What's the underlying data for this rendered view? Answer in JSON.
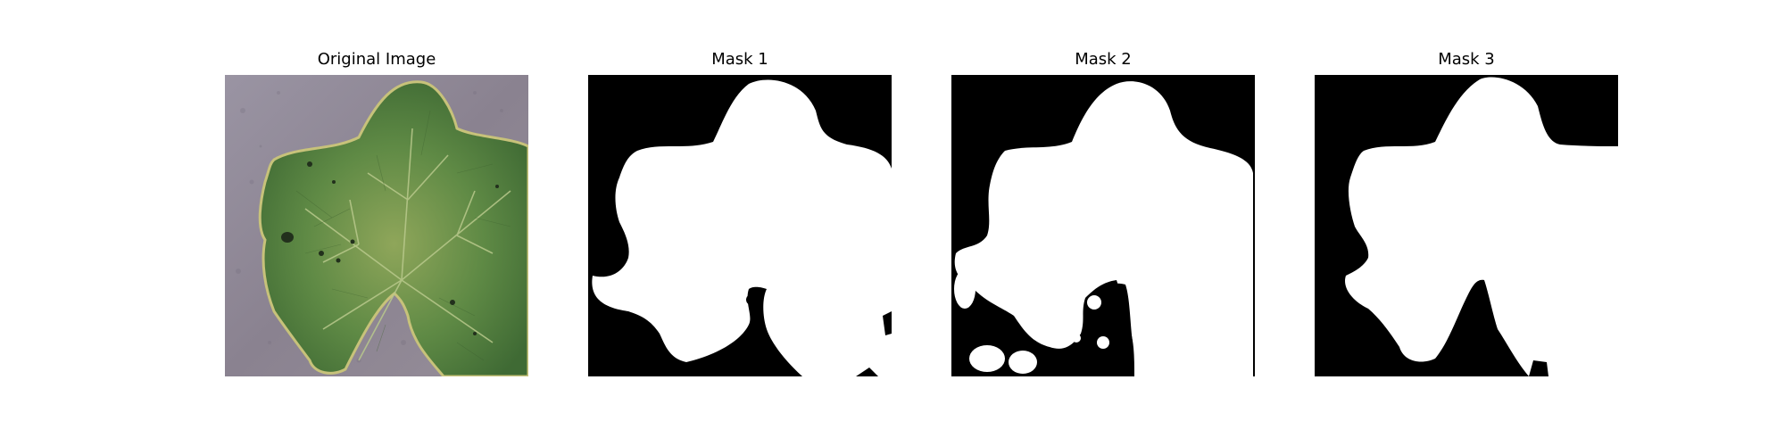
{
  "figure": {
    "panels": [
      {
        "title": "Original Image",
        "kind": "photo",
        "content": "leaf"
      },
      {
        "title": "Mask 1",
        "kind": "mask"
      },
      {
        "title": "Mask 2",
        "kind": "mask"
      },
      {
        "title": "Mask 3",
        "kind": "mask"
      }
    ]
  },
  "colors": {
    "background": "#ffffff",
    "mask_background": "#000000",
    "mask_foreground": "#ffffff",
    "leaf_dark": "#4f7a3c",
    "leaf_light": "#a6b86a",
    "ground": "#8e8593"
  }
}
